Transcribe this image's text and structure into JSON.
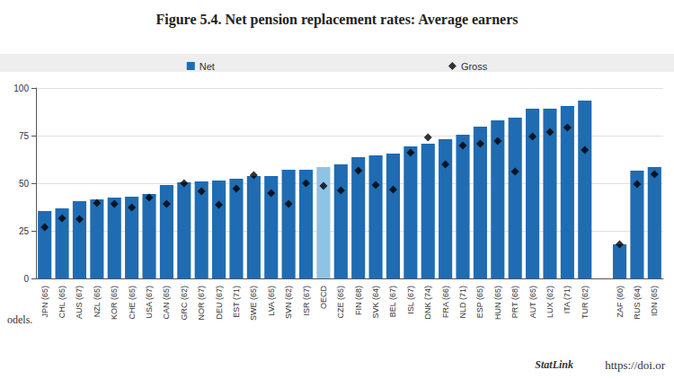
{
  "chart_data": {
    "type": "bar",
    "title": "Figure 5.4. Net pension replacement rates: Average earners",
    "categories": [
      "JPN (65)",
      "CHL (65)",
      "AUS (67)",
      "NZL (65)",
      "KOR (65)",
      "CHE (65)",
      "USA (67)",
      "CAN (65)",
      "GRC (62)",
      "NOR (67)",
      "DEU (67)",
      "EST (71)",
      "SWE (65)",
      "LVA (65)",
      "SVN (62)",
      "ISR (67)",
      "OECD",
      "CZE (65)",
      "FIN (68)",
      "SVK (64)",
      "BEL (67)",
      "ISL (67)",
      "DNK (74)",
      "FRA (66)",
      "NLD (71)",
      "ESP (65)",
      "HUN (65)",
      "PRT (68)",
      "AUT (65)",
      "LUX (62)",
      "ITA (71)",
      "TUR (62)",
      null,
      "ZAF (60)",
      "RUS (64)",
      "IDN (65)"
    ],
    "series": [
      {
        "name": "Net",
        "type": "bar",
        "colors": [
          "#1f6cb3",
          "#1f6cb3",
          "#1f6cb3",
          "#1f6cb3",
          "#1f6cb3",
          "#1f6cb3",
          "#1f6cb3",
          "#1f6cb3",
          "#1f6cb3",
          "#1f6cb3",
          "#1f6cb3",
          "#1f6cb3",
          "#1f6cb3",
          "#1f6cb3",
          "#1f6cb3",
          "#1f6cb3",
          "#8ec3e6",
          "#1f6cb3",
          "#1f6cb3",
          "#1f6cb3",
          "#1f6cb3",
          "#1f6cb3",
          "#1f6cb3",
          "#1f6cb3",
          "#1f6cb3",
          "#1f6cb3",
          "#1f6cb3",
          "#1f6cb3",
          "#1f6cb3",
          "#1f6cb3",
          "#1f6cb3",
          "#1f6cb3",
          "#1f6cb3",
          "#1f6cb3",
          "#1f6cb3",
          "#1f6cb3"
        ],
        "values": [
          35.4,
          36.8,
          40.6,
          41.5,
          42.5,
          42.9,
          44.3,
          49.1,
          50.5,
          50.9,
          51.4,
          52.4,
          53.8,
          53.8,
          57.1,
          57.1,
          58.5,
          59.9,
          63.7,
          64.6,
          65.6,
          69.3,
          70.8,
          73.1,
          75.5,
          79.7,
          83.0,
          84.4,
          89.2,
          89.2,
          90.6,
          93.4,
          null,
          17.9,
          56.6,
          58.5
        ]
      },
      {
        "name": "Gross",
        "type": "scatter",
        "marker": "diamond",
        "color": "#000000",
        "values": [
          26.9,
          31.6,
          31.1,
          39.6,
          39.2,
          37.3,
          42.5,
          39.2,
          50.0,
          45.8,
          38.7,
          47.2,
          54.2,
          44.8,
          39.2,
          50.0,
          48.6,
          46.2,
          56.6,
          49.1,
          46.7,
          66.0,
          74.1,
          59.9,
          69.8,
          70.8,
          72.2,
          56.1,
          74.5,
          76.9,
          79.2,
          67.5,
          null,
          17.9,
          49.5,
          54.7
        ]
      }
    ],
    "ylim": [
      0,
      100
    ],
    "yticks": [
      0,
      25,
      50,
      75,
      100
    ],
    "grid": true,
    "legend": "top",
    "note": "odels.",
    "source_label": "StatLink",
    "source": "https://doi.or"
  }
}
